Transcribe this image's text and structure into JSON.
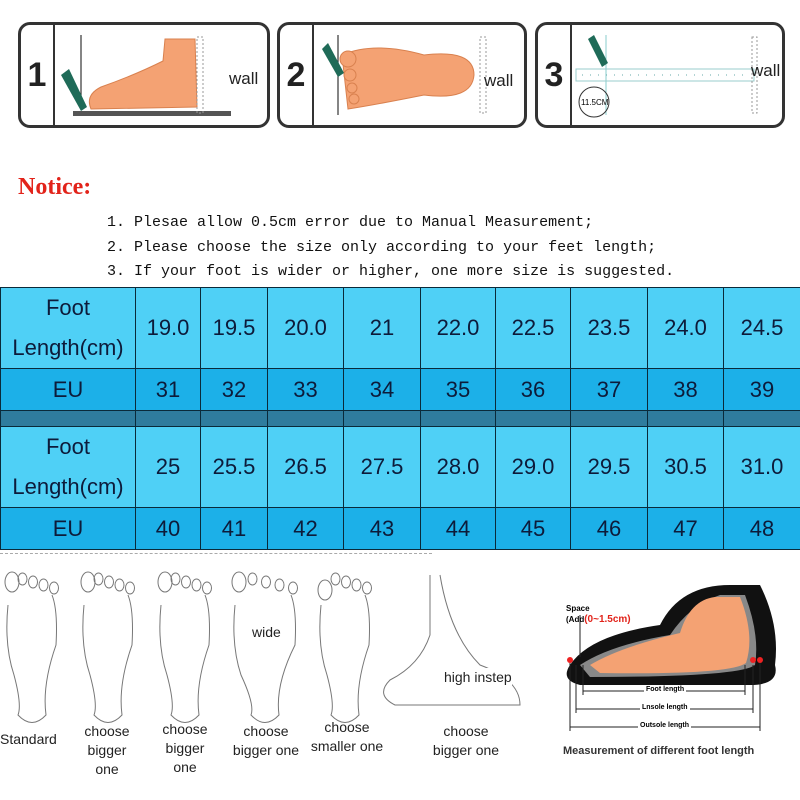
{
  "steps": [
    {
      "number": "1",
      "wall_label": "wall"
    },
    {
      "number": "2",
      "wall_label": "wall"
    },
    {
      "number": "3",
      "wall_label": "wall",
      "ruler_label": "11.5CM"
    }
  ],
  "notice": {
    "title": "Notice:",
    "lines": [
      "1. Plesae allow 0.5cm error due to Manual Measurement;",
      "2. Please choose the size only according to your feet length;",
      "3. If your foot is wider or higher, one more size is suggested."
    ]
  },
  "size_table": {
    "foot_header_line1": "Foot",
    "foot_header_line2": "Length(cm)",
    "eu_header": "EU",
    "block1": {
      "foot": [
        "19.0",
        "19.5",
        "20.0",
        "21",
        "22.0",
        "22.5",
        "23.5",
        "24.0",
        "24.5"
      ],
      "eu": [
        "31",
        "32",
        "33",
        "34",
        "35",
        "36",
        "37",
        "38",
        "39"
      ]
    },
    "block2": {
      "foot": [
        "25",
        "25.5",
        "26.5",
        "27.5",
        "28.0",
        "29.0",
        "29.5",
        "30.5",
        "31.0"
      ],
      "eu": [
        "40",
        "41",
        "42",
        "43",
        "44",
        "45",
        "46",
        "47",
        "48"
      ]
    }
  },
  "foot_types": [
    {
      "caption": "Standard"
    },
    {
      "caption": "choose\nbigger one"
    },
    {
      "caption": "choose\nbigger one"
    },
    {
      "caption": "choose\nbigger one",
      "label": "wide"
    },
    {
      "caption": "choose\nsmaller one"
    },
    {
      "caption": "choose\nbigger one",
      "label": "high instep"
    }
  ],
  "measurement": {
    "space_label": "Space",
    "add_label": "(Add",
    "add_value": "(0~1.5cm)",
    "foot_length": "Foot length",
    "insole_length": "Lnsole length",
    "outsole_length": "Outsole length",
    "caption": "Measurement of different foot length"
  },
  "colors": {
    "foot_row": "#4fd0f6",
    "eu_row": "#1cb0e8",
    "separator": "#2f7c9e",
    "notice": "#e2231a",
    "skin": "#f4a273"
  }
}
